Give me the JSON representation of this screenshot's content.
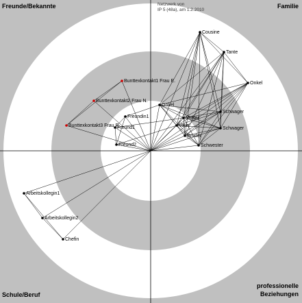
{
  "header": {
    "lines": [
      "Netzwerk von",
      "IP 5 (48a), am 1.2.2010"
    ]
  },
  "quadrants": {
    "top_left": "Freunde/Bekannte",
    "top_right": "Familie",
    "bottom_left": "Schule/Beruf",
    "bottom_right": [
      "professionelle",
      "Beziehungen"
    ]
  },
  "nodes": [
    {
      "label": "Cousine"
    },
    {
      "label": "Tante"
    },
    {
      "label": "Onkel"
    },
    {
      "label": "Bunttexkontakt1 Frau E."
    },
    {
      "label": "Bunttexkontakt2 Frau N."
    },
    {
      "label": "Bunttexkontakt3 Frau P."
    },
    {
      "label": "Onkel"
    },
    {
      "label": "Schwager"
    },
    {
      "label": "Schwager"
    },
    {
      "label": "Mutter"
    },
    {
      "label": "Vater"
    },
    {
      "label": "Bruder"
    },
    {
      "label": "Schwester"
    },
    {
      "label": "Freundin1"
    },
    {
      "label": "Freund1"
    },
    {
      "label": "Freund2"
    },
    {
      "label": "Arbeitskollegin1"
    },
    {
      "label": "Arbeitskollegin2"
    },
    {
      "label": "Chefin"
    }
  ]
}
